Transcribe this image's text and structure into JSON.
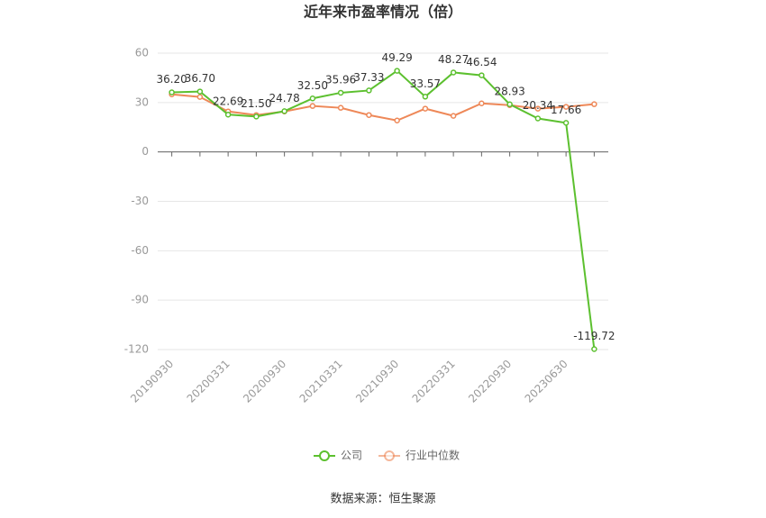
{
  "chart_data": {
    "type": "line",
    "title": "近年来市盈率情况（倍）",
    "categories": [
      "20190930",
      null,
      "20200331",
      null,
      "20200930",
      null,
      "20210331",
      null,
      "20210930",
      null,
      "20220331",
      null,
      "20220930",
      null,
      "20230630",
      null
    ],
    "series": [
      {
        "name": "公司",
        "color": "#5cc02f",
        "values": [
          36.2,
          36.7,
          22.69,
          21.5,
          24.78,
          32.5,
          35.96,
          37.33,
          49.29,
          33.57,
          48.27,
          46.54,
          28.93,
          20.34,
          17.66,
          -119.72
        ],
        "value_labels": [
          "36.20",
          "36.70",
          "22.69",
          "21.50",
          "24.78",
          "32.50",
          "35.96",
          "37.33",
          "49.29",
          "33.57",
          "48.27",
          "46.54",
          "28.93",
          "20.34",
          "17.66",
          "-119.72"
        ]
      },
      {
        "name": "行业中位数",
        "color": "#ee8858",
        "values": [
          35.0,
          33.4,
          24.6,
          22.4,
          24.6,
          27.9,
          26.8,
          22.4,
          19.1,
          26.3,
          21.9,
          29.5,
          28.4,
          26.3,
          27.4,
          29.0
        ]
      }
    ],
    "ylim": [
      -120,
      60
    ],
    "yticks": [
      60,
      30,
      0,
      -30,
      -60,
      -90,
      -120
    ],
    "grid": true,
    "legend": "bottom",
    "source": "数据来源：恒生聚源"
  }
}
